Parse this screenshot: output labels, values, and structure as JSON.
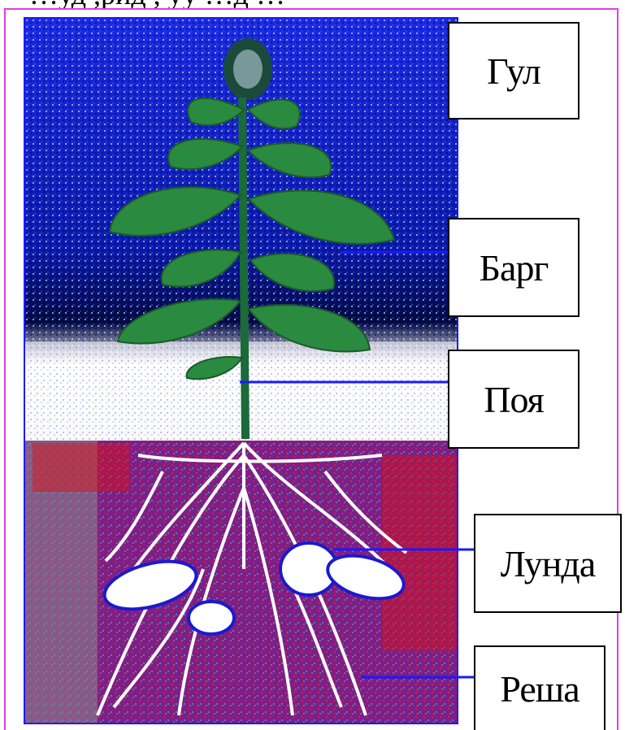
{
  "header_fragment": "…уд ,рид ,  уу …д …",
  "labels": {
    "flower": "Гул",
    "leaf": "Барг",
    "stem": "Поя",
    "tuber": "Лунда",
    "root": "Реша"
  },
  "colors": {
    "arrow": "#1a1aff",
    "frame": "#e040e0",
    "sky": "#1020d0",
    "soil": "#8a1a8a",
    "plant": "#2a8a3a"
  }
}
